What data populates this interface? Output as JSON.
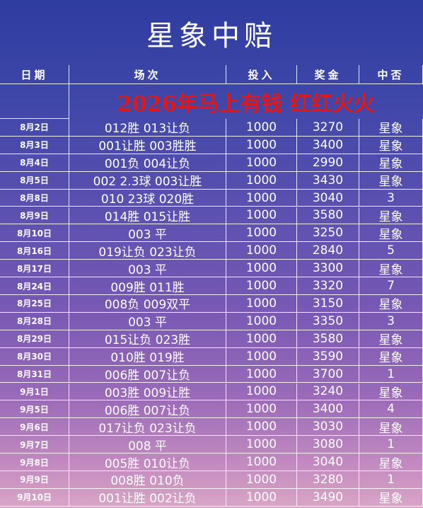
{
  "header": {
    "title": "星象中赔"
  },
  "table": {
    "columns": [
      "日期",
      "场次",
      "投入",
      "奖金",
      "中否"
    ],
    "banner": "2026年马上有钱 红红火火",
    "rows": [
      [
        "8月2日",
        "012胜 013让负",
        1000,
        3270,
        "星象"
      ],
      [
        "8月3日",
        "001让胜 003胜胜",
        1000,
        3400,
        "星象"
      ],
      [
        "8月4日",
        "001负 004让负",
        1000,
        2990,
        "星象"
      ],
      [
        "8月5日",
        "002 2.3球 003让胜",
        1000,
        3430,
        "星象"
      ],
      [
        "8月8日",
        "010 23球 020胜",
        1000,
        3040,
        "3"
      ],
      [
        "8月9日",
        "014胜 015让胜",
        1000,
        3580,
        "星象"
      ],
      [
        "8月10日",
        "003 平",
        1000,
        3250,
        "星象"
      ],
      [
        "8月16日",
        "019让负 023让负",
        1000,
        2840,
        "5"
      ],
      [
        "8月17日",
        "003 平",
        1000,
        3300,
        "星象"
      ],
      [
        "8月24日",
        "009胜 011胜",
        1000,
        3320,
        "7"
      ],
      [
        "8月25日",
        "008负 009双平",
        1000,
        3150,
        "星象"
      ],
      [
        "8月28日",
        "003 平",
        1000,
        3350,
        "3"
      ],
      [
        "8月29日",
        "015让负 023胜",
        1000,
        3580,
        "星象"
      ],
      [
        "8月30日",
        "010胜 019胜",
        1000,
        3590,
        "星象"
      ],
      [
        "8月31日",
        "006胜 007让负",
        1000,
        3700,
        "1"
      ],
      [
        "9月1日",
        "003胜 009让胜",
        1000,
        3240,
        "星象"
      ],
      [
        "9月5日",
        "006胜 007让负",
        1000,
        3400,
        "4"
      ],
      [
        "9月6日",
        "017让负 023让负",
        1000,
        3030,
        "星象"
      ],
      [
        "9月7日",
        "008 平",
        1000,
        3080,
        "1"
      ],
      [
        "9月8日",
        "005胜 010让负",
        1000,
        3040,
        "星象"
      ],
      [
        "9月9日",
        "008胜 010负",
        1000,
        3280,
        "1"
      ],
      [
        "9月10日",
        "001让胜 002让负",
        1000,
        3490,
        "星象"
      ]
    ]
  }
}
